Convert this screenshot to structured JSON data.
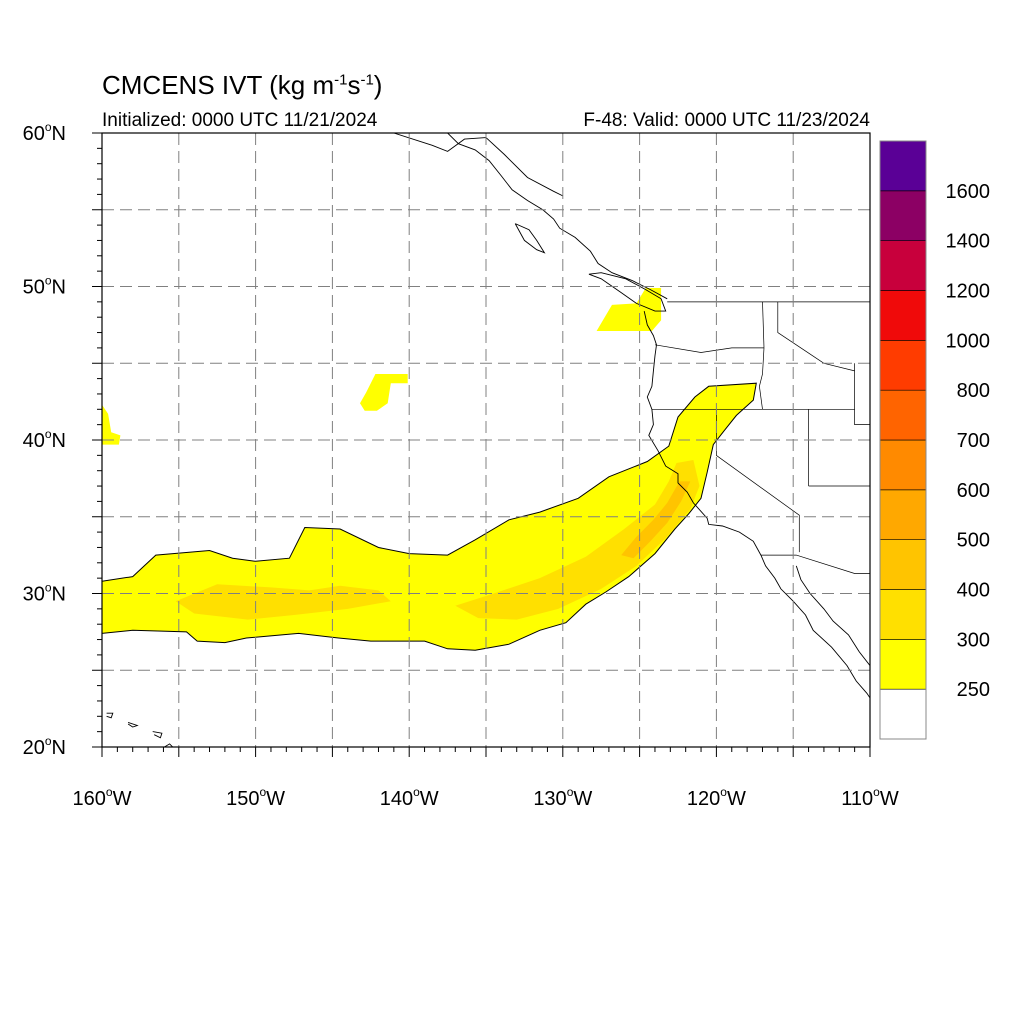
{
  "title": {
    "main": "CMCENS IVT (kg m",
    "exp1": "-1",
    "mid": "s",
    "exp2": "-1",
    "end": ")"
  },
  "initialized": "Initialized: 0000 UTC 11/21/2024",
  "valid": "F-48: Valid: 0000 UTC 11/23/2024",
  "map_extent": {
    "lon_min": -160,
    "lon_max": -110,
    "lat_min": 20,
    "lat_max": 60
  },
  "lat_labels": [
    {
      "value": 60,
      "text": "60",
      "hemi": "N"
    },
    {
      "value": 50,
      "text": "50",
      "hemi": "N"
    },
    {
      "value": 40,
      "text": "40",
      "hemi": "N"
    },
    {
      "value": 30,
      "text": "30",
      "hemi": "N"
    },
    {
      "value": 20,
      "text": "20",
      "hemi": "N"
    }
  ],
  "lon_labels": [
    {
      "value": -160,
      "text": "160",
      "hemi": "W"
    },
    {
      "value": -150,
      "text": "150",
      "hemi": "W"
    },
    {
      "value": -140,
      "text": "140",
      "hemi": "W"
    },
    {
      "value": -130,
      "text": "130",
      "hemi": "W"
    },
    {
      "value": -120,
      "text": "120",
      "hemi": "W"
    },
    {
      "value": -110,
      "text": "110",
      "hemi": "W"
    }
  ],
  "colorbar": {
    "levels": [
      "250",
      "300",
      "400",
      "500",
      "600",
      "700",
      "800",
      "1000",
      "1200",
      "1400",
      "1600"
    ],
    "colors": [
      "#ffffff",
      "#ffff00",
      "#ffe000",
      "#ffc400",
      "#ffa800",
      "#ff8a00",
      "#ff6400",
      "#ff3c00",
      "#f00a0a",
      "#c8003c",
      "#8c0064",
      "#5a0096"
    ]
  },
  "ivt_features": [
    {
      "name": "atmospheric-river",
      "value_band": "250-300",
      "outline": [
        [
          -160,
          30.8
        ],
        [
          -158,
          31.1
        ],
        [
          -156.5,
          32.5
        ],
        [
          -153,
          32.8
        ],
        [
          -151.5,
          32.3
        ],
        [
          -150,
          32.1
        ],
        [
          -147.8,
          32.3
        ],
        [
          -146.8,
          34.3
        ],
        [
          -144.5,
          34.2
        ],
        [
          -142,
          33.0
        ],
        [
          -140,
          32.6
        ],
        [
          -137.5,
          32.5
        ],
        [
          -135.7,
          33.5
        ],
        [
          -133.5,
          34.8
        ],
        [
          -131.5,
          35.3
        ],
        [
          -129,
          36.2
        ],
        [
          -127,
          37.6
        ],
        [
          -124.5,
          38.6
        ],
        [
          -123.1,
          39.6
        ],
        [
          -122.5,
          41.5
        ],
        [
          -121.4,
          42.8
        ],
        [
          -120.5,
          43.5
        ],
        [
          -117.4,
          43.7
        ],
        [
          -117.6,
          42.6
        ],
        [
          -118.7,
          41.6
        ],
        [
          -119.5,
          40.6
        ],
        [
          -120.2,
          39.7
        ],
        [
          -120.6,
          37.9
        ],
        [
          -121,
          36.2
        ],
        [
          -121.8,
          35.2
        ],
        [
          -122.7,
          34.2
        ],
        [
          -124,
          32.6
        ],
        [
          -125.7,
          31.1
        ],
        [
          -127.2,
          30.1
        ],
        [
          -128.5,
          29.3
        ],
        [
          -129.8,
          28.1
        ],
        [
          -131.5,
          27.6
        ],
        [
          -133.5,
          26.7
        ],
        [
          -135.7,
          26.3
        ],
        [
          -137.5,
          26.4
        ],
        [
          -139,
          26.9
        ],
        [
          -142.5,
          26.9
        ],
        [
          -144.6,
          27.1
        ],
        [
          -147.2,
          27.4
        ],
        [
          -150.6,
          27.1
        ],
        [
          -152,
          26.8
        ],
        [
          -153.8,
          26.9
        ],
        [
          -154.5,
          27.5
        ],
        [
          -158,
          27.6
        ],
        [
          -160,
          27.4
        ]
      ]
    },
    {
      "name": "inner-core-west",
      "value_band": "300-400",
      "outline": [
        [
          -155.2,
          29.5
        ],
        [
          -152.5,
          30.6
        ],
        [
          -149,
          30.4
        ],
        [
          -146.5,
          30.2
        ],
        [
          -144.5,
          30.5
        ],
        [
          -142,
          30.2
        ],
        [
          -141.2,
          29.5
        ],
        [
          -144,
          29.0
        ],
        [
          -147.5,
          28.6
        ],
        [
          -150.5,
          28.3
        ],
        [
          -154,
          28.7
        ]
      ]
    },
    {
      "name": "inner-core-east",
      "value_band": "300-400",
      "outline": [
        [
          -137,
          29.2
        ],
        [
          -134.5,
          30.0
        ],
        [
          -131.5,
          31.0
        ],
        [
          -128.5,
          32.4
        ],
        [
          -126,
          34.2
        ],
        [
          -124,
          35.8
        ],
        [
          -123.1,
          37.3
        ],
        [
          -122.6,
          38.5
        ],
        [
          -121.5,
          38.7
        ],
        [
          -121.1,
          37.0
        ],
        [
          -121.7,
          35.5
        ],
        [
          -123.3,
          33.6
        ],
        [
          -125.2,
          31.8
        ],
        [
          -127.5,
          30.3
        ],
        [
          -130.3,
          29.0
        ],
        [
          -133,
          28.3
        ],
        [
          -135.5,
          28.4
        ]
      ]
    },
    {
      "name": "core-max",
      "value_band": "400-500",
      "outline": [
        [
          -126.2,
          32.5
        ],
        [
          -125.2,
          33.7
        ],
        [
          -124.1,
          34.8
        ],
        [
          -123.2,
          35.9
        ],
        [
          -122.4,
          37.3
        ],
        [
          -121.7,
          37.3
        ],
        [
          -122.3,
          36.0
        ],
        [
          -123.2,
          34.6
        ],
        [
          -124.3,
          33.4
        ],
        [
          -125.4,
          32.3
        ]
      ]
    },
    {
      "name": "patch-washington",
      "value_band": "250-300",
      "outline": [
        [
          -127.8,
          47.1
        ],
        [
          -126.8,
          48.8
        ],
        [
          -125.2,
          48.9
        ],
        [
          -124.6,
          49.9
        ],
        [
          -123.6,
          49.9
        ],
        [
          -123.6,
          47.8
        ],
        [
          -124.2,
          47.1
        ]
      ]
    },
    {
      "name": "patch-midpacific",
      "value_band": "250-300",
      "outline": [
        [
          -143.2,
          42.4
        ],
        [
          -142.8,
          43.1
        ],
        [
          -142.2,
          44.3
        ],
        [
          -140.1,
          44.3
        ],
        [
          -140.1,
          43.7
        ],
        [
          -141.2,
          43.7
        ],
        [
          -141.4,
          42.4
        ],
        [
          -142.1,
          41.9
        ],
        [
          -142.9,
          41.9
        ]
      ]
    },
    {
      "name": "patch-west-edge",
      "value_band": "250-300",
      "outline": [
        [
          -160,
          42.3
        ],
        [
          -159.6,
          41.7
        ],
        [
          -159.4,
          40.5
        ],
        [
          -158.8,
          40.3
        ],
        [
          -158.9,
          39.7
        ],
        [
          -160,
          39.7
        ]
      ]
    }
  ],
  "coastline": [
    {
      "name": "alaska-southeast-coast",
      "points": [
        [
          -137.5,
          60
        ],
        [
          -136.8,
          59.3
        ],
        [
          -135.7,
          58.9
        ],
        [
          -134.8,
          58.2
        ],
        [
          -134,
          57.2
        ],
        [
          -133.3,
          56.3
        ],
        [
          -132.3,
          55.6
        ],
        [
          -131.3,
          55
        ],
        [
          -130.6,
          54.4
        ],
        [
          -130.2,
          53.8
        ],
        [
          -129.2,
          53.2
        ],
        [
          -128.2,
          52.3
        ],
        [
          -127.7,
          51.5
        ],
        [
          -126.8,
          50.9
        ],
        [
          -125.5,
          50.4
        ],
        [
          -124.3,
          49.8
        ],
        [
          -123.2,
          49.2
        ]
      ]
    },
    {
      "name": "vancouver-island",
      "points": [
        [
          -128.3,
          50.8
        ],
        [
          -127.5,
          50.5
        ],
        [
          -126.2,
          49.6
        ],
        [
          -125.2,
          48.9
        ],
        [
          -124,
          48.4
        ],
        [
          -123.3,
          48.4
        ],
        [
          -123.6,
          49.2
        ],
        [
          -124.6,
          49.8
        ],
        [
          -125.9,
          50.5
        ],
        [
          -127.5,
          50.9
        ],
        [
          -128.3,
          50.8
        ]
      ]
    },
    {
      "name": "haida-gwaii",
      "points": [
        [
          -133.1,
          54.1
        ],
        [
          -132.2,
          53.7
        ],
        [
          -131.7,
          53
        ],
        [
          -131.2,
          52.2
        ],
        [
          -131.7,
          52.4
        ],
        [
          -132.5,
          53
        ],
        [
          -133.1,
          54.1
        ]
      ]
    },
    {
      "name": "us-west-coast",
      "points": [
        [
          -124.7,
          48.4
        ],
        [
          -124.5,
          47.5
        ],
        [
          -124.1,
          46.8
        ],
        [
          -123.9,
          46.2
        ],
        [
          -124,
          45.5
        ],
        [
          -124.1,
          44.5
        ],
        [
          -124.2,
          43.5
        ],
        [
          -124.5,
          42.8
        ],
        [
          -124.2,
          42
        ],
        [
          -124.1,
          41
        ],
        [
          -124.4,
          40.3
        ],
        [
          -123.8,
          39.3
        ],
        [
          -123.3,
          38.3
        ],
        [
          -122.5,
          37.8
        ],
        [
          -122.5,
          37.2
        ],
        [
          -121.9,
          36.6
        ],
        [
          -121.5,
          35.9
        ],
        [
          -120.6,
          34.9
        ],
        [
          -120.5,
          34.5
        ],
        [
          -119.6,
          34.4
        ],
        [
          -118.5,
          34
        ],
        [
          -117.6,
          33.4
        ],
        [
          -117.1,
          32.5
        ],
        [
          -116.8,
          31.8
        ],
        [
          -116.2,
          31
        ],
        [
          -115.8,
          30.3
        ],
        [
          -115,
          29.5
        ],
        [
          -114.2,
          28.6
        ],
        [
          -113.7,
          27.6
        ],
        [
          -112.5,
          26.5
        ],
        [
          -111.5,
          25.3
        ],
        [
          -110.9,
          24.3
        ],
        [
          -110.2,
          23.5
        ],
        [
          -110,
          23.2
        ]
      ]
    },
    {
      "name": "gulf-of-california",
      "points": [
        [
          -114.8,
          31.8
        ],
        [
          -114.5,
          30.9
        ],
        [
          -113.9,
          30
        ],
        [
          -113,
          29
        ],
        [
          -112.4,
          28.2
        ],
        [
          -111.4,
          27.3
        ],
        [
          -110.7,
          26.2
        ],
        [
          -110,
          25.3
        ]
      ]
    },
    {
      "name": "british-columbia-interior-border",
      "points": [
        [
          -141,
          60
        ],
        [
          -138.5,
          59.2
        ],
        [
          -137.5,
          58.8
        ],
        [
          -136.4,
          59.6
        ],
        [
          -135,
          59.7
        ],
        [
          -133.8,
          58.6
        ],
        [
          -132.3,
          57.1
        ],
        [
          -130.6,
          56.2
        ],
        [
          -130,
          55.9
        ]
      ]
    },
    {
      "name": "hawaii",
      "points": [
        [
          -156.1,
          19.9
        ],
        [
          -155.6,
          20.2
        ],
        [
          -155.1,
          19.7
        ],
        [
          -155.8,
          19
        ]
      ]
    },
    {
      "name": "hawaii-maui",
      "points": [
        [
          -156.7,
          21
        ],
        [
          -156.1,
          20.9
        ],
        [
          -156.2,
          20.6
        ],
        [
          -156.6,
          20.8
        ]
      ]
    },
    {
      "name": "hawaii-oahu",
      "points": [
        [
          -158.3,
          21.6
        ],
        [
          -157.7,
          21.4
        ],
        [
          -158,
          21.3
        ],
        [
          -158.3,
          21.5
        ]
      ]
    },
    {
      "name": "hawaii-kauai",
      "points": [
        [
          -159.7,
          22.2
        ],
        [
          -159.3,
          22.2
        ],
        [
          -159.4,
          21.9
        ],
        [
          -159.7,
          22
        ]
      ]
    }
  ],
  "borders": [
    {
      "name": "us-canada-border",
      "points": [
        [
          -123.2,
          49
        ],
        [
          -110,
          49
        ]
      ]
    },
    {
      "name": "washington-oregon",
      "points": [
        [
          -124,
          46.2
        ],
        [
          -121,
          45.7
        ],
        [
          -119,
          46
        ],
        [
          -116.9,
          46
        ]
      ]
    },
    {
      "name": "oregon-idaho",
      "points": [
        [
          -116.9,
          46
        ],
        [
          -117,
          44.3
        ],
        [
          -117.2,
          43.5
        ],
        [
          -117,
          42
        ]
      ]
    },
    {
      "name": "washington-idaho",
      "points": [
        [
          -116.9,
          46
        ],
        [
          -117,
          49
        ]
      ]
    },
    {
      "name": "oregon-california-nevada",
      "points": [
        [
          -124.2,
          42
        ],
        [
          -111,
          42
        ]
      ]
    },
    {
      "name": "california-nevada",
      "points": [
        [
          -120,
          42
        ],
        [
          -120,
          39
        ],
        [
          -114.6,
          35.1
        ],
        [
          -114.6,
          32.7
        ]
      ]
    },
    {
      "name": "nevada-utah",
      "points": [
        [
          -114,
          42
        ],
        [
          -114,
          37
        ]
      ]
    },
    {
      "name": "utah-arizona",
      "points": [
        [
          -114,
          37
        ],
        [
          -110,
          37
        ]
      ]
    },
    {
      "name": "mexico-border",
      "points": [
        [
          -117.1,
          32.5
        ],
        [
          -114.8,
          32.5
        ],
        [
          -111,
          31.3
        ],
        [
          -110,
          31.3
        ]
      ]
    },
    {
      "name": "idaho-montana",
      "points": [
        [
          -116,
          49
        ],
        [
          -116,
          47
        ],
        [
          -114.5,
          46
        ],
        [
          -113,
          45
        ],
        [
          -111,
          44.5
        ]
      ]
    },
    {
      "name": "wyoming-idaho",
      "points": [
        [
          -111,
          45
        ],
        [
          -111,
          41
        ],
        [
          -110,
          41
        ]
      ]
    }
  ]
}
